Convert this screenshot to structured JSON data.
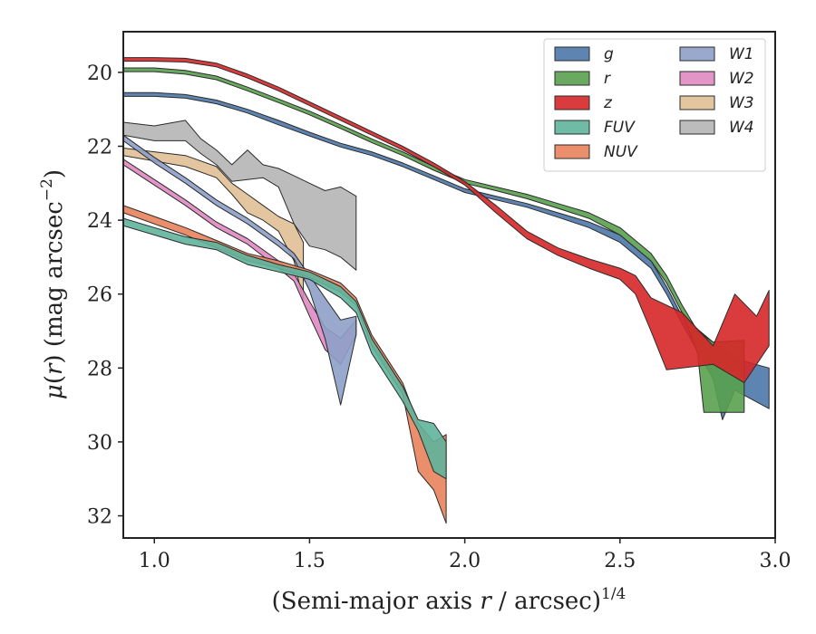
{
  "chart_data": {
    "type": "area",
    "xlabel": "(Semi-major axis r / arcsec)",
    "xlabel_parts": {
      "pre": "(Semi-major axis ",
      "var": "r",
      "post": " / arcsec)",
      "sup": "1/4"
    },
    "ylabel": "μ(r) (mag arcsec−2)",
    "ylabel_parts": {
      "mu": "μ",
      "open": "(",
      "var": "r",
      "close": ")",
      "unit": " (mag arcsec",
      "sup": "−2",
      "end": ")"
    },
    "xlim": [
      0.9,
      3.0
    ],
    "ylim": [
      32.6,
      18.9
    ],
    "y_inverted": true,
    "x_ticks": [
      1.0,
      1.5,
      2.0,
      2.5,
      3.0
    ],
    "x_tick_labels": [
      "1.0",
      "1.5",
      "2.0",
      "2.5",
      "3.0"
    ],
    "y_ticks": [
      20,
      22,
      24,
      26,
      28,
      30,
      32
    ],
    "y_tick_labels": [
      "20",
      "22",
      "24",
      "26",
      "28",
      "30",
      "32"
    ],
    "grid": false,
    "legend": {
      "position": "top-right",
      "columns": 2
    },
    "series": [
      {
        "name": "g",
        "color": "#4c78a8",
        "upper": [
          [
            0.9,
            20.55
          ],
          [
            1.0,
            20.55
          ],
          [
            1.1,
            20.6
          ],
          [
            1.2,
            20.75
          ],
          [
            1.3,
            21.0
          ],
          [
            1.4,
            21.3
          ],
          [
            1.5,
            21.62
          ],
          [
            1.6,
            21.92
          ],
          [
            1.7,
            22.15
          ],
          [
            1.8,
            22.45
          ],
          [
            1.9,
            22.8
          ],
          [
            2.0,
            23.15
          ],
          [
            2.1,
            23.35
          ],
          [
            2.2,
            23.55
          ],
          [
            2.3,
            23.8
          ],
          [
            2.4,
            24.05
          ],
          [
            2.5,
            24.4
          ],
          [
            2.6,
            25.1
          ],
          [
            2.65,
            25.8
          ],
          [
            2.7,
            26.6
          ],
          [
            2.8,
            27.3
          ],
          [
            2.87,
            27.75
          ],
          [
            2.98,
            28.0
          ]
        ],
        "lower": [
          [
            0.9,
            20.65
          ],
          [
            1.0,
            20.65
          ],
          [
            1.1,
            20.7
          ],
          [
            1.2,
            20.85
          ],
          [
            1.3,
            21.1
          ],
          [
            1.4,
            21.42
          ],
          [
            1.5,
            21.72
          ],
          [
            1.6,
            22.02
          ],
          [
            1.7,
            22.25
          ],
          [
            1.8,
            22.55
          ],
          [
            1.9,
            22.9
          ],
          [
            2.0,
            23.25
          ],
          [
            2.1,
            23.45
          ],
          [
            2.2,
            23.65
          ],
          [
            2.3,
            23.92
          ],
          [
            2.4,
            24.2
          ],
          [
            2.5,
            24.6
          ],
          [
            2.6,
            25.3
          ],
          [
            2.65,
            26.0
          ],
          [
            2.7,
            26.8
          ],
          [
            2.8,
            28.3
          ],
          [
            2.83,
            29.4
          ],
          [
            2.87,
            28.6
          ],
          [
            2.98,
            29.1
          ]
        ]
      },
      {
        "name": "r",
        "color": "#59a14f",
        "upper": [
          [
            0.9,
            19.88
          ],
          [
            1.0,
            19.88
          ],
          [
            1.1,
            19.95
          ],
          [
            1.2,
            20.1
          ],
          [
            1.3,
            20.4
          ],
          [
            1.4,
            20.72
          ],
          [
            1.5,
            21.05
          ],
          [
            1.6,
            21.42
          ],
          [
            1.7,
            21.8
          ],
          [
            1.8,
            22.15
          ],
          [
            1.9,
            22.55
          ],
          [
            2.0,
            22.9
          ],
          [
            2.1,
            23.1
          ],
          [
            2.2,
            23.3
          ],
          [
            2.3,
            23.55
          ],
          [
            2.4,
            23.8
          ],
          [
            2.5,
            24.2
          ],
          [
            2.6,
            24.9
          ],
          [
            2.65,
            25.5
          ],
          [
            2.7,
            26.3
          ],
          [
            2.75,
            27.0
          ],
          [
            2.8,
            27.3
          ],
          [
            2.9,
            27.25
          ]
        ],
        "lower": [
          [
            0.9,
            19.98
          ],
          [
            1.0,
            19.98
          ],
          [
            1.1,
            20.05
          ],
          [
            1.2,
            20.2
          ],
          [
            1.3,
            20.5
          ],
          [
            1.4,
            20.82
          ],
          [
            1.5,
            21.15
          ],
          [
            1.6,
            21.52
          ],
          [
            1.7,
            21.9
          ],
          [
            1.8,
            22.25
          ],
          [
            1.9,
            22.65
          ],
          [
            2.0,
            23.0
          ],
          [
            2.1,
            23.2
          ],
          [
            2.2,
            23.42
          ],
          [
            2.3,
            23.68
          ],
          [
            2.4,
            23.95
          ],
          [
            2.5,
            24.4
          ],
          [
            2.6,
            25.1
          ],
          [
            2.65,
            25.7
          ],
          [
            2.7,
            26.5
          ],
          [
            2.75,
            27.6
          ],
          [
            2.77,
            29.2
          ],
          [
            2.9,
            29.2
          ]
        ]
      },
      {
        "name": "z",
        "color": "#d62728",
        "upper": [
          [
            0.9,
            19.6
          ],
          [
            1.0,
            19.6
          ],
          [
            1.1,
            19.62
          ],
          [
            1.2,
            19.75
          ],
          [
            1.3,
            20.05
          ],
          [
            1.4,
            20.4
          ],
          [
            1.5,
            20.8
          ],
          [
            1.6,
            21.2
          ],
          [
            1.7,
            21.6
          ],
          [
            1.8,
            22.0
          ],
          [
            1.9,
            22.45
          ],
          [
            2.0,
            22.95
          ],
          [
            2.1,
            23.6
          ],
          [
            2.2,
            24.3
          ],
          [
            2.3,
            24.75
          ],
          [
            2.4,
            25.05
          ],
          [
            2.5,
            25.3
          ],
          [
            2.55,
            25.5
          ],
          [
            2.6,
            26.1
          ],
          [
            2.7,
            26.5
          ],
          [
            2.8,
            27.4
          ],
          [
            2.87,
            26.0
          ],
          [
            2.94,
            26.6
          ],
          [
            2.98,
            25.9
          ]
        ],
        "lower": [
          [
            0.9,
            19.7
          ],
          [
            1.0,
            19.7
          ],
          [
            1.1,
            19.72
          ],
          [
            1.2,
            19.85
          ],
          [
            1.3,
            20.15
          ],
          [
            1.4,
            20.5
          ],
          [
            1.5,
            20.9
          ],
          [
            1.6,
            21.3
          ],
          [
            1.7,
            21.7
          ],
          [
            1.8,
            22.1
          ],
          [
            1.9,
            22.55
          ],
          [
            2.0,
            23.05
          ],
          [
            2.1,
            23.8
          ],
          [
            2.2,
            24.5
          ],
          [
            2.3,
            24.95
          ],
          [
            2.4,
            25.3
          ],
          [
            2.5,
            25.6
          ],
          [
            2.55,
            26.0
          ],
          [
            2.6,
            27.0
          ],
          [
            2.65,
            28.05
          ],
          [
            2.8,
            27.9
          ],
          [
            2.9,
            28.4
          ],
          [
            2.98,
            27.4
          ]
        ]
      },
      {
        "name": "FUV",
        "color": "#5fb49c",
        "upper": [
          [
            0.9,
            23.95
          ],
          [
            1.0,
            24.2
          ],
          [
            1.1,
            24.45
          ],
          [
            1.2,
            24.6
          ],
          [
            1.3,
            24.95
          ],
          [
            1.4,
            25.2
          ],
          [
            1.5,
            25.4
          ],
          [
            1.6,
            25.8
          ],
          [
            1.65,
            26.2
          ],
          [
            1.7,
            27.2
          ],
          [
            1.8,
            28.5
          ],
          [
            1.85,
            29.4
          ],
          [
            1.9,
            29.5
          ],
          [
            1.94,
            30.0
          ]
        ],
        "lower": [
          [
            0.9,
            24.15
          ],
          [
            1.0,
            24.4
          ],
          [
            1.1,
            24.65
          ],
          [
            1.2,
            24.8
          ],
          [
            1.3,
            25.2
          ],
          [
            1.4,
            25.4
          ],
          [
            1.5,
            25.6
          ],
          [
            1.6,
            26.1
          ],
          [
            1.65,
            26.5
          ],
          [
            1.7,
            27.6
          ],
          [
            1.8,
            28.9
          ],
          [
            1.85,
            29.7
          ],
          [
            1.9,
            30.8
          ],
          [
            1.94,
            31.0
          ]
        ]
      },
      {
        "name": "NUV",
        "color": "#e8825c",
        "upper": [
          [
            0.9,
            23.6
          ],
          [
            1.0,
            23.9
          ],
          [
            1.1,
            24.2
          ],
          [
            1.2,
            24.55
          ],
          [
            1.3,
            24.9
          ],
          [
            1.4,
            25.1
          ],
          [
            1.5,
            25.35
          ],
          [
            1.6,
            25.7
          ],
          [
            1.65,
            26.1
          ],
          [
            1.7,
            27.1
          ],
          [
            1.8,
            28.4
          ],
          [
            1.85,
            29.5
          ],
          [
            1.9,
            30.0
          ],
          [
            1.94,
            29.8
          ]
        ],
        "lower": [
          [
            0.9,
            23.8
          ],
          [
            1.0,
            24.1
          ],
          [
            1.1,
            24.4
          ],
          [
            1.2,
            24.75
          ],
          [
            1.3,
            25.1
          ],
          [
            1.4,
            25.3
          ],
          [
            1.5,
            25.55
          ],
          [
            1.6,
            25.95
          ],
          [
            1.65,
            26.3
          ],
          [
            1.7,
            27.4
          ],
          [
            1.8,
            28.7
          ],
          [
            1.85,
            30.8
          ],
          [
            1.9,
            31.3
          ],
          [
            1.94,
            32.2
          ]
        ]
      },
      {
        "name": "W1",
        "color": "#8da0c8",
        "upper": [
          [
            0.9,
            21.7
          ],
          [
            1.0,
            22.3
          ],
          [
            1.1,
            22.85
          ],
          [
            1.2,
            23.45
          ],
          [
            1.3,
            23.95
          ],
          [
            1.4,
            24.55
          ],
          [
            1.45,
            24.9
          ],
          [
            1.5,
            25.5
          ],
          [
            1.55,
            26.1
          ],
          [
            1.6,
            26.7
          ],
          [
            1.65,
            26.6
          ]
        ],
        "lower": [
          [
            0.9,
            21.85
          ],
          [
            1.0,
            22.45
          ],
          [
            1.1,
            23.0
          ],
          [
            1.2,
            23.6
          ],
          [
            1.3,
            24.1
          ],
          [
            1.4,
            24.7
          ],
          [
            1.45,
            25.05
          ],
          [
            1.5,
            25.9
          ],
          [
            1.55,
            27.2
          ],
          [
            1.6,
            29.0
          ],
          [
            1.65,
            27.1
          ]
        ]
      },
      {
        "name": "W2",
        "color": "#e08ac2",
        "upper": [
          [
            0.9,
            22.35
          ],
          [
            1.0,
            22.9
          ],
          [
            1.1,
            23.45
          ],
          [
            1.2,
            24.05
          ],
          [
            1.3,
            24.5
          ],
          [
            1.4,
            25.1
          ],
          [
            1.45,
            25.45
          ],
          [
            1.5,
            26.2
          ],
          [
            1.55,
            26.9
          ],
          [
            1.6,
            27.2
          ],
          [
            1.65,
            26.7
          ]
        ],
        "lower": [
          [
            0.9,
            22.5
          ],
          [
            1.0,
            23.05
          ],
          [
            1.1,
            23.6
          ],
          [
            1.2,
            24.2
          ],
          [
            1.3,
            24.65
          ],
          [
            1.4,
            25.3
          ],
          [
            1.45,
            25.65
          ],
          [
            1.5,
            26.6
          ],
          [
            1.55,
            27.5
          ],
          [
            1.6,
            27.9
          ],
          [
            1.65,
            27.1
          ]
        ]
      },
      {
        "name": "W3",
        "color": "#e0c095",
        "upper": [
          [
            0.9,
            22.05
          ],
          [
            1.0,
            22.15
          ],
          [
            1.1,
            22.25
          ],
          [
            1.2,
            22.55
          ],
          [
            1.25,
            23.0
          ],
          [
            1.3,
            23.3
          ],
          [
            1.35,
            23.6
          ],
          [
            1.4,
            23.9
          ],
          [
            1.45,
            24.1
          ],
          [
            1.48,
            24.6
          ]
        ],
        "lower": [
          [
            0.9,
            22.25
          ],
          [
            1.0,
            22.4
          ],
          [
            1.1,
            22.55
          ],
          [
            1.2,
            22.85
          ],
          [
            1.25,
            23.3
          ],
          [
            1.3,
            23.8
          ],
          [
            1.35,
            24.0
          ],
          [
            1.4,
            24.3
          ],
          [
            1.45,
            25.1
          ],
          [
            1.48,
            26.2
          ]
        ]
      },
      {
        "name": "W4",
        "color": "#b5b5b5",
        "upper": [
          [
            0.9,
            21.35
          ],
          [
            1.0,
            21.45
          ],
          [
            1.1,
            21.3
          ],
          [
            1.15,
            21.8
          ],
          [
            1.2,
            22.1
          ],
          [
            1.25,
            22.5
          ],
          [
            1.3,
            22.1
          ],
          [
            1.35,
            22.5
          ],
          [
            1.4,
            22.6
          ],
          [
            1.45,
            22.8
          ],
          [
            1.5,
            23.0
          ],
          [
            1.55,
            23.2
          ],
          [
            1.6,
            23.1
          ],
          [
            1.65,
            23.35
          ]
        ],
        "lower": [
          [
            0.9,
            21.7
          ],
          [
            1.0,
            21.85
          ],
          [
            1.1,
            21.85
          ],
          [
            1.15,
            22.2
          ],
          [
            1.2,
            22.5
          ],
          [
            1.25,
            22.95
          ],
          [
            1.3,
            22.9
          ],
          [
            1.35,
            22.85
          ],
          [
            1.4,
            23.1
          ],
          [
            1.45,
            24.1
          ],
          [
            1.5,
            24.7
          ],
          [
            1.55,
            24.8
          ],
          [
            1.6,
            25.0
          ],
          [
            1.65,
            25.35
          ]
        ]
      }
    ]
  }
}
